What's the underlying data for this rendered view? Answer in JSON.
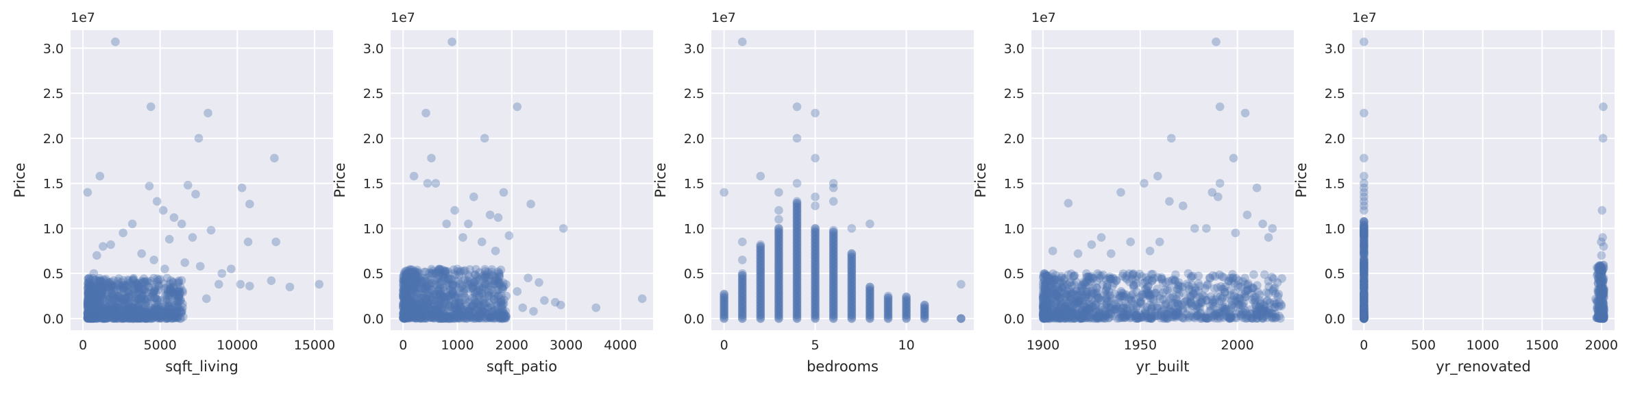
{
  "chart_data": [
    {
      "type": "scatter",
      "xlabel": "sqft_living",
      "ylabel": "Price",
      "y_offset_label": "1e7",
      "xlim": [
        -800,
        16200
      ],
      "ylim": [
        -0.13,
        3.2
      ],
      "x_ticks": [
        0,
        5000,
        10000,
        15000
      ],
      "x_tick_labels": [
        "0",
        "5000",
        "10000",
        "15000"
      ],
      "y_ticks": [
        0,
        0.5,
        1.0,
        1.5,
        2.0,
        2.5,
        3.0
      ],
      "y_tick_labels": [
        "0.0",
        "0.5",
        "1.0",
        "1.5",
        "2.0",
        "2.5",
        "3.0"
      ],
      "grid": true,
      "color": "#4c72b0",
      "points": [
        [
          2100,
          3.07
        ],
        [
          4400,
          2.35
        ],
        [
          8100,
          2.28
        ],
        [
          7500,
          2.0
        ],
        [
          12400,
          1.78
        ],
        [
          1100,
          1.58
        ],
        [
          300,
          1.4
        ],
        [
          10300,
          1.45
        ],
        [
          10800,
          1.27
        ],
        [
          6800,
          1.48
        ],
        [
          7300,
          1.38
        ],
        [
          4300,
          1.47
        ],
        [
          5200,
          1.2
        ],
        [
          4800,
          1.3
        ],
        [
          5900,
          1.12
        ],
        [
          6400,
          1.05
        ],
        [
          8300,
          0.98
        ],
        [
          7100,
          0.9
        ],
        [
          10700,
          0.85
        ],
        [
          12500,
          0.85
        ],
        [
          9600,
          0.55
        ],
        [
          9000,
          0.5
        ],
        [
          10200,
          0.38
        ],
        [
          10800,
          0.36
        ],
        [
          12200,
          0.42
        ],
        [
          13400,
          0.35
        ],
        [
          15300,
          0.38
        ],
        [
          8800,
          0.38
        ],
        [
          8000,
          0.22
        ],
        [
          6200,
          0.3
        ],
        [
          5600,
          0.88
        ],
        [
          3200,
          1.05
        ],
        [
          2600,
          0.95
        ],
        [
          1800,
          0.82
        ],
        [
          1300,
          0.8
        ],
        [
          900,
          0.7
        ],
        [
          3800,
          0.72
        ],
        [
          4600,
          0.65
        ],
        [
          5300,
          0.55
        ],
        [
          6600,
          0.62
        ],
        [
          7600,
          0.58
        ],
        [
          700,
          0.5
        ],
        [
          400,
          0.45
        ]
      ],
      "dense_cluster": {
        "x_range": [
          300,
          6500
        ],
        "y_range": [
          0,
          0.45
        ],
        "count": 900
      }
    },
    {
      "type": "scatter",
      "xlabel": "sqft_patio",
      "ylabel": "Price",
      "y_offset_label": "1e7",
      "xlim": [
        -230,
        4600
      ],
      "ylim": [
        -0.13,
        3.2
      ],
      "x_ticks": [
        0,
        1000,
        2000,
        3000,
        4000
      ],
      "x_tick_labels": [
        "0",
        "1000",
        "2000",
        "3000",
        "4000"
      ],
      "y_ticks": [
        0,
        0.5,
        1.0,
        1.5,
        2.0,
        2.5,
        3.0
      ],
      "y_tick_labels": [
        "0.0",
        "0.5",
        "1.0",
        "1.5",
        "2.0",
        "2.5",
        "3.0"
      ],
      "grid": true,
      "color": "#4c72b0",
      "points": [
        [
          900,
          3.07
        ],
        [
          2100,
          2.35
        ],
        [
          420,
          2.28
        ],
        [
          1500,
          2.0
        ],
        [
          520,
          1.78
        ],
        [
          200,
          1.58
        ],
        [
          450,
          1.5
        ],
        [
          600,
          1.5
        ],
        [
          1850,
          1.4
        ],
        [
          1300,
          1.35
        ],
        [
          2350,
          1.27
        ],
        [
          950,
          1.2
        ],
        [
          1600,
          1.15
        ],
        [
          1750,
          1.12
        ],
        [
          2950,
          1.0
        ],
        [
          1200,
          1.05
        ],
        [
          800,
          1.05
        ],
        [
          1950,
          0.92
        ],
        [
          1450,
          0.85
        ],
        [
          1100,
          0.9
        ],
        [
          1700,
          0.75
        ],
        [
          2300,
          0.45
        ],
        [
          2500,
          0.4
        ],
        [
          2900,
          0.15
        ],
        [
          3550,
          0.12
        ],
        [
          4400,
          0.22
        ],
        [
          2600,
          0.2
        ],
        [
          2100,
          0.3
        ],
        [
          2800,
          0.18
        ],
        [
          1900,
          0.25
        ],
        [
          2200,
          0.12
        ],
        [
          2400,
          0.08
        ]
      ],
      "dense_cluster": {
        "x_range": [
          0,
          1900
        ],
        "y_range": [
          0,
          0.55
        ],
        "count": 900
      }
    },
    {
      "type": "scatter",
      "xlabel": "bedrooms",
      "ylabel": "Price",
      "y_offset_label": "1e7",
      "xlim": [
        -0.7,
        13.7
      ],
      "ylim": [
        -0.13,
        3.2
      ],
      "x_ticks": [
        0,
        5,
        10
      ],
      "x_tick_labels": [
        "0",
        "5",
        "10"
      ],
      "y_ticks": [
        0,
        0.5,
        1.0,
        1.5,
        2.0,
        2.5,
        3.0
      ],
      "y_tick_labels": [
        "0.0",
        "0.5",
        "1.0",
        "1.5",
        "2.0",
        "2.5",
        "3.0"
      ],
      "grid": true,
      "color": "#4c72b0",
      "columns": [
        {
          "x": 0,
          "max": 0.27,
          "outliers": [
            1.4
          ]
        },
        {
          "x": 1,
          "max": 0.5,
          "outliers": [
            3.07,
            0.85,
            0.65
          ]
        },
        {
          "x": 2,
          "max": 0.82,
          "outliers": [
            1.58
          ]
        },
        {
          "x": 3,
          "max": 1.0,
          "outliers": [
            1.4,
            1.2,
            1.1
          ]
        },
        {
          "x": 4,
          "max": 1.3,
          "outliers": [
            2.35,
            2.0,
            1.5
          ]
        },
        {
          "x": 5,
          "max": 1.0,
          "outliers": [
            2.28,
            1.78,
            1.35,
            1.25
          ]
        },
        {
          "x": 6,
          "max": 0.98,
          "outliers": [
            1.5,
            1.45,
            1.3
          ]
        },
        {
          "x": 7,
          "max": 0.72,
          "outliers": [
            1.0
          ]
        },
        {
          "x": 8,
          "max": 0.35,
          "outliers": [
            1.05
          ]
        },
        {
          "x": 9,
          "max": 0.25,
          "outliers": []
        },
        {
          "x": 10,
          "max": 0.24,
          "outliers": []
        },
        {
          "x": 11,
          "max": 0.15,
          "outliers": []
        },
        {
          "x": 13,
          "max": 0.0,
          "outliers": [
            0.38
          ]
        }
      ]
    },
    {
      "type": "scatter",
      "xlabel": "yr_built",
      "ylabel": "Price",
      "y_offset_label": "1e7",
      "xlim": [
        1894,
        2029
      ],
      "ylim": [
        -0.13,
        3.2
      ],
      "x_ticks": [
        1900,
        1950,
        2000
      ],
      "x_tick_labels": [
        "1900",
        "1950",
        "2000"
      ],
      "y_ticks": [
        0,
        0.5,
        1.0,
        1.5,
        2.0,
        2.5,
        3.0
      ],
      "y_tick_labels": [
        "0.0",
        "0.5",
        "1.0",
        "1.5",
        "2.0",
        "2.5",
        "3.0"
      ],
      "grid": true,
      "color": "#4c72b0",
      "points": [
        [
          1989,
          3.07
        ],
        [
          1991,
          2.35
        ],
        [
          2004,
          2.28
        ],
        [
          1966,
          2.0
        ],
        [
          1998,
          1.78
        ],
        [
          1959,
          1.58
        ],
        [
          1952,
          1.5
        ],
        [
          1991,
          1.5
        ],
        [
          1940,
          1.4
        ],
        [
          1987,
          1.4
        ],
        [
          2010,
          1.45
        ],
        [
          1913,
          1.28
        ],
        [
          1990,
          1.35
        ],
        [
          1972,
          1.25
        ],
        [
          1965,
          1.3
        ],
        [
          2005,
          1.15
        ],
        [
          2018,
          1.0
        ],
        [
          1978,
          1.0
        ],
        [
          1984,
          1.0
        ],
        [
          2013,
          1.05
        ],
        [
          1930,
          0.9
        ],
        [
          1945,
          0.85
        ],
        [
          1999,
          0.95
        ],
        [
          2016,
          0.9
        ],
        [
          1925,
          0.82
        ],
        [
          1960,
          0.85
        ],
        [
          1905,
          0.75
        ],
        [
          1918,
          0.72
        ],
        [
          1935,
          0.72
        ],
        [
          1955,
          0.75
        ]
      ],
      "dense_cluster": {
        "x_range": [
          1900,
          2023
        ],
        "y_range": [
          0,
          0.5
        ],
        "count": 1100
      }
    },
    {
      "type": "scatter",
      "xlabel": "yr_renovated",
      "ylabel": "Price",
      "y_offset_label": "1e7",
      "xlim": [
        -100,
        2110
      ],
      "ylim": [
        -0.13,
        3.2
      ],
      "x_ticks": [
        0,
        500,
        1000,
        1500,
        2000
      ],
      "x_tick_labels": [
        "0",
        "500",
        "1000",
        "1500",
        "2000"
      ],
      "y_ticks": [
        0,
        0.5,
        1.0,
        1.5,
        2.0,
        2.5,
        3.0
      ],
      "y_tick_labels": [
        "0.0",
        "0.5",
        "1.0",
        "1.5",
        "2.0",
        "2.5",
        "3.0"
      ],
      "grid": true,
      "color": "#4c72b0",
      "points": [
        [
          0,
          3.07
        ],
        [
          0,
          2.28
        ],
        [
          0,
          1.78
        ],
        [
          0,
          1.58
        ],
        [
          0,
          1.5
        ],
        [
          0,
          1.45
        ],
        [
          0,
          1.4
        ],
        [
          0,
          1.35
        ],
        [
          0,
          1.3
        ],
        [
          0,
          1.25
        ],
        [
          0,
          1.2
        ],
        [
          2015,
          2.35
        ],
        [
          2013,
          2.0
        ],
        [
          2005,
          1.2
        ],
        [
          2010,
          0.9
        ],
        [
          1998,
          0.85
        ],
        [
          2018,
          0.8
        ],
        [
          1990,
          0.5
        ],
        [
          1985,
          0.4
        ],
        [
          2000,
          0.7
        ]
      ],
      "vertical_band": {
        "x": 0,
        "max": 1.1,
        "count": 300
      },
      "right_cluster": {
        "x_range": [
          1950,
          2022
        ],
        "y_range": [
          0,
          0.6
        ],
        "count": 250
      }
    }
  ]
}
